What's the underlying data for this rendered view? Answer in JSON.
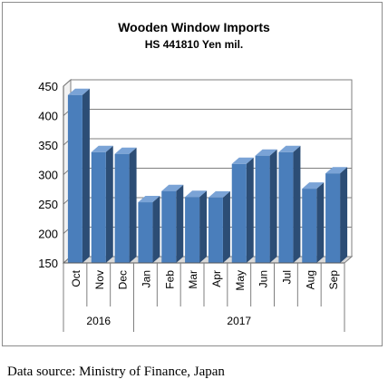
{
  "chart_data": {
    "type": "bar",
    "title": "Wooden Window Imports",
    "subtitle": "HS 441810 Yen mil.",
    "categories": [
      "Oct",
      "Nov",
      "Dec",
      "Jan",
      "Feb",
      "Mar",
      "Apr",
      "May",
      "Jun",
      "Jul",
      "Aug",
      "Sep"
    ],
    "groups": [
      {
        "label": "2016",
        "categories": [
          "Oct",
          "Nov",
          "Dec"
        ]
      },
      {
        "label": "2017",
        "categories": [
          "Jan",
          "Feb",
          "Mar",
          "Apr",
          "May",
          "Jun",
          "Jul",
          "Aug",
          "Sep"
        ]
      }
    ],
    "values": [
      435,
      338,
      335,
      253,
      272,
      262,
      261,
      318,
      332,
      338,
      276,
      302
    ],
    "ylim": [
      150,
      450
    ],
    "yticks": [
      150,
      200,
      250,
      300,
      350,
      400,
      450
    ],
    "grid": true,
    "legend": "none",
    "bar_color": "#4a7ebb",
    "xlabel": "",
    "ylabel": ""
  },
  "footer": {
    "source": "Data source: Ministry of Finance, Japan"
  }
}
